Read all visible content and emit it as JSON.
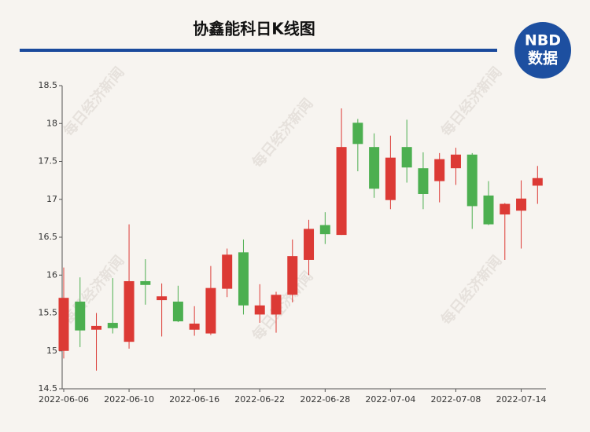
{
  "chart_data": {
    "type": "candlestick",
    "title": "协鑫能科日K线图",
    "logo": {
      "top": "NBD",
      "bottom": "数据"
    },
    "watermark": "每日经济新闻",
    "categories": [
      "2022-06-06",
      null,
      null,
      null,
      "2022-06-10",
      null,
      null,
      null,
      "2022-06-16",
      null,
      null,
      null,
      "2022-06-22",
      null,
      null,
      null,
      "2022-06-28",
      null,
      null,
      null,
      "2022-07-04",
      null,
      null,
      null,
      "2022-07-08",
      null,
      null,
      null,
      "2022-07-14",
      null
    ],
    "open": [
      15.0,
      15.65,
      15.28,
      15.37,
      15.12,
      15.92,
      15.67,
      15.65,
      15.28,
      15.23,
      15.82,
      16.3,
      15.48,
      15.48,
      15.74,
      16.2,
      16.66,
      16.53,
      18.01,
      17.69,
      16.99,
      17.69,
      17.41,
      17.24,
      17.41,
      17.59,
      17.05,
      16.8,
      16.85,
      17.18
    ],
    "high": [
      16.1,
      15.97,
      15.5,
      15.96,
      16.67,
      16.21,
      15.89,
      15.86,
      15.59,
      16.12,
      16.35,
      16.47,
      15.88,
      15.78,
      16.47,
      16.73,
      16.83,
      18.2,
      18.06,
      17.87,
      17.84,
      18.05,
      17.62,
      17.61,
      17.68,
      17.61,
      17.24,
      16.95,
      17.25,
      17.44
    ],
    "low": [
      14.9,
      15.05,
      14.74,
      15.23,
      15.03,
      15.61,
      15.19,
      15.38,
      15.2,
      15.21,
      15.71,
      15.48,
      15.37,
      15.24,
      15.64,
      16.0,
      16.41,
      16.53,
      17.37,
      17.02,
      16.87,
      17.22,
      16.87,
      16.96,
      17.19,
      16.61,
      16.66,
      16.2,
      16.35,
      16.94
    ],
    "close": [
      15.7,
      15.27,
      15.33,
      15.3,
      15.92,
      15.87,
      15.72,
      15.39,
      15.36,
      15.83,
      16.27,
      15.6,
      15.6,
      15.74,
      16.25,
      16.61,
      16.54,
      17.69,
      17.73,
      17.14,
      17.55,
      17.42,
      17.07,
      17.53,
      17.59,
      16.91,
      16.67,
      16.94,
      17.01,
      17.28
    ],
    "up_color": "#dc3a35",
    "down_color": "#4caf50",
    "ylim": [
      14.5,
      18.5
    ],
    "yticks": [
      14.5,
      15,
      15.5,
      16,
      16.5,
      17,
      17.5,
      18,
      18.5
    ]
  }
}
